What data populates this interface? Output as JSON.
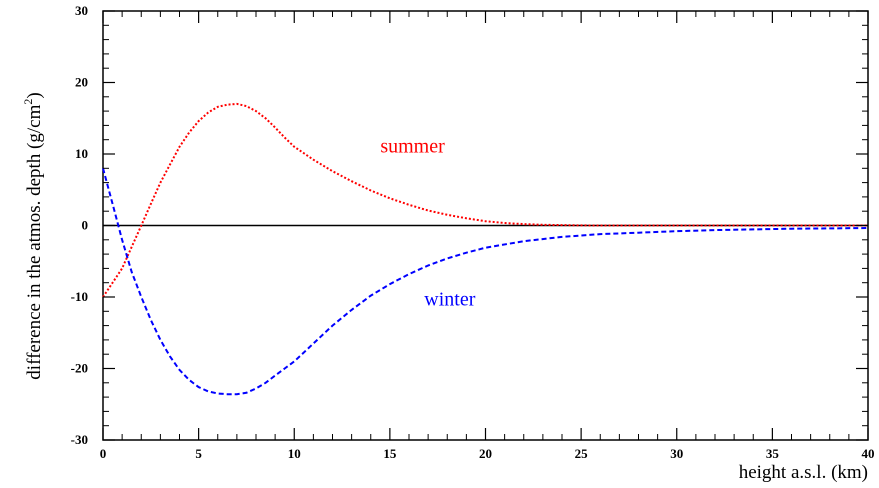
{
  "chart_data": {
    "type": "line",
    "title": "",
    "xlabel": "height a.s.l. (km)",
    "ylabel": "difference in the atmos. depth (g/cm",
    "ylabel_superscript": "2",
    "ylabel_suffix": ")",
    "xlim": [
      0,
      40
    ],
    "ylim": [
      -30,
      30
    ],
    "x_ticks": [
      0,
      5,
      10,
      15,
      20,
      25,
      30,
      35,
      40
    ],
    "y_ticks": [
      -30,
      -20,
      -10,
      0,
      10,
      20,
      30
    ],
    "x_tick_labels": [
      "0",
      "5",
      "10",
      "15",
      "20",
      "25",
      "30",
      "35",
      "40"
    ],
    "y_tick_labels": [
      "-30",
      "-20",
      "-10",
      "0",
      "10",
      "20",
      "30"
    ],
    "grid": false,
    "zero_line": true,
    "series": [
      {
        "name": "summer",
        "color": "#ff0000",
        "style": "dotted",
        "x": [
          0,
          0.5,
          1,
          1.5,
          2,
          2.5,
          3,
          3.5,
          4,
          4.5,
          5,
          5.5,
          6,
          6.5,
          7,
          7.5,
          8,
          8.5,
          9,
          9.5,
          10,
          11,
          12,
          13,
          14,
          15,
          16,
          17,
          18,
          19,
          20,
          21,
          22,
          23,
          24,
          25,
          26,
          28,
          30,
          32,
          35,
          38,
          40
        ],
        "y": [
          -10,
          -8,
          -6,
          -3,
          0,
          3,
          6,
          8.5,
          11,
          13,
          14.6,
          15.8,
          16.6,
          16.9,
          17,
          16.7,
          16,
          15,
          13.7,
          12.3,
          11,
          9.2,
          7.6,
          6.2,
          4.9,
          3.8,
          2.9,
          2.1,
          1.5,
          1,
          0.6,
          0.35,
          0.2,
          0.1,
          0.05,
          0.02,
          0,
          0,
          0,
          0,
          0,
          0,
          0
        ]
      },
      {
        "name": "winter",
        "color": "#0000ff",
        "style": "dashed",
        "x": [
          0,
          0.5,
          1,
          1.5,
          2,
          2.5,
          3,
          3.5,
          4,
          4.5,
          5,
          5.5,
          6,
          6.5,
          7,
          7.5,
          8,
          8.5,
          9,
          9.5,
          10,
          11,
          12,
          13,
          14,
          15,
          16,
          17,
          18,
          19,
          20,
          22,
          24,
          26,
          28,
          30,
          32,
          34,
          36,
          38,
          40
        ],
        "y": [
          8,
          3,
          -2,
          -6.5,
          -10,
          -13.2,
          -16,
          -18.3,
          -20.2,
          -21.6,
          -22.6,
          -23.2,
          -23.5,
          -23.6,
          -23.6,
          -23.4,
          -22.8,
          -22,
          -21,
          -20,
          -19,
          -16.5,
          -14,
          -11.8,
          -9.8,
          -8.2,
          -6.8,
          -5.6,
          -4.6,
          -3.8,
          -3.1,
          -2.2,
          -1.6,
          -1.2,
          -1,
          -0.8,
          -0.65,
          -0.55,
          -0.45,
          -0.4,
          -0.35
        ]
      }
    ],
    "annotations": [
      {
        "text": "summer",
        "x": 14.5,
        "y": 10.2,
        "color": "#ff0000"
      },
      {
        "text": "winter",
        "x": 16.8,
        "y": -11.2,
        "color": "#0000ff"
      }
    ]
  }
}
